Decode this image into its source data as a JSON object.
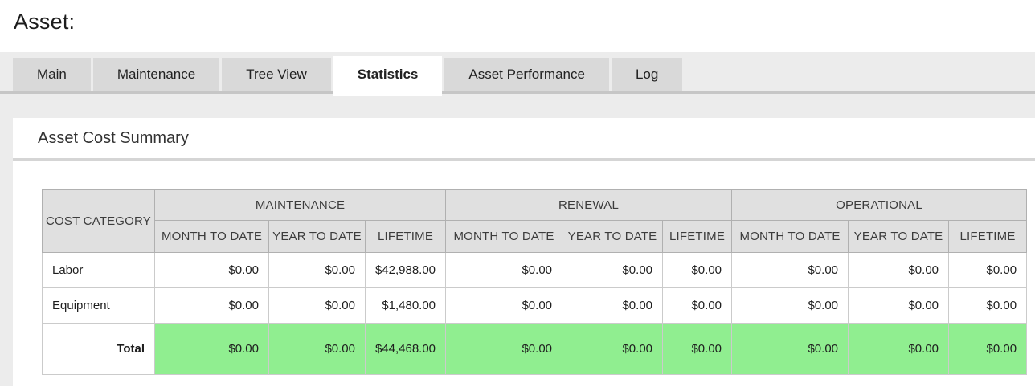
{
  "page": {
    "title": "Asset:"
  },
  "tabs": {
    "items": [
      {
        "label": "Main",
        "active": false
      },
      {
        "label": "Maintenance",
        "active": false
      },
      {
        "label": "Tree View",
        "active": false
      },
      {
        "label": "Statistics",
        "active": true
      },
      {
        "label": "Asset Performance",
        "active": false
      },
      {
        "label": "Log",
        "active": false
      }
    ]
  },
  "section": {
    "title": "Asset Cost Summary"
  },
  "cost_table": {
    "corner_header": "COST CATEGORY",
    "groups": [
      {
        "label": "MAINTENANCE"
      },
      {
        "label": "RENEWAL"
      },
      {
        "label": "OPERATIONAL"
      }
    ],
    "sub_headers": [
      "MONTH TO DATE",
      "YEAR TO DATE",
      "LIFETIME"
    ],
    "rows": [
      {
        "category": "Labor",
        "values": [
          "$0.00",
          "$0.00",
          "$42,988.00",
          "$0.00",
          "$0.00",
          "$0.00",
          "$0.00",
          "$0.00",
          "$0.00"
        ]
      },
      {
        "category": "Equipment",
        "values": [
          "$0.00",
          "$0.00",
          "$1,480.00",
          "$0.00",
          "$0.00",
          "$0.00",
          "$0.00",
          "$0.00",
          "$0.00"
        ]
      }
    ],
    "total_row": {
      "label": "Total",
      "values": [
        "$0.00",
        "$0.00",
        "$44,468.00",
        "$0.00",
        "$0.00",
        "$0.00",
        "$0.00",
        "$0.00",
        "$0.00"
      ]
    }
  },
  "colors": {
    "total_row_highlight": "#90ee90",
    "active_tab_bg": "#ffffff",
    "tab_bg": "#d9d9d9",
    "header_cell_bg": "#e0e0e0",
    "band_bg": "#ececec"
  }
}
